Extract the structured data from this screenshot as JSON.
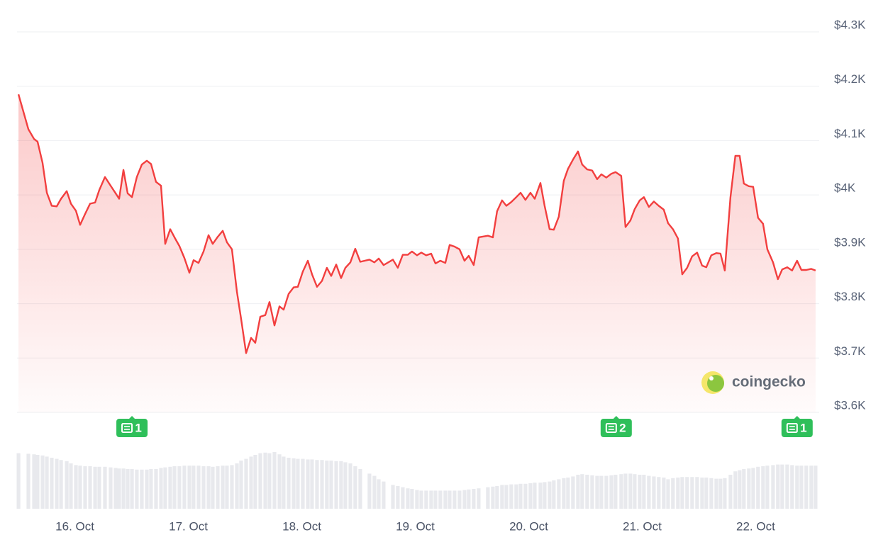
{
  "chart_data": {
    "type": "line",
    "x": [
      15.503,
      15.59,
      15.64,
      15.671,
      15.715,
      15.753,
      15.796,
      15.84,
      15.878,
      15.928,
      15.965,
      16.009,
      16.046,
      16.09,
      16.134,
      16.178,
      16.215,
      16.265,
      16.315,
      16.359,
      16.39,
      16.428,
      16.465,
      16.503,
      16.546,
      16.59,
      16.634,
      16.671,
      16.715,
      16.759,
      16.796,
      16.84,
      16.878,
      16.921,
      16.965,
      17.009,
      17.046,
      17.09,
      17.134,
      17.178,
      17.215,
      17.259,
      17.303,
      17.34,
      17.384,
      17.428,
      17.465,
      17.509,
      17.553,
      17.59,
      17.634,
      17.678,
      17.715,
      17.759,
      17.803,
      17.84,
      17.884,
      17.928,
      17.965,
      18.009,
      18.053,
      18.09,
      18.134,
      18.178,
      18.221,
      18.259,
      18.303,
      18.346,
      18.384,
      18.428,
      18.471,
      18.515,
      18.596,
      18.64,
      18.678,
      18.721,
      18.803,
      18.846,
      18.89,
      18.934,
      18.971,
      19.015,
      19.053,
      19.096,
      19.14,
      19.178,
      19.221,
      19.265,
      19.303,
      19.346,
      19.39,
      19.434,
      19.471,
      19.515,
      19.559,
      19.64,
      19.684,
      19.721,
      19.765,
      19.803,
      19.846,
      19.89,
      19.928,
      19.971,
      20.015,
      20.053,
      20.103,
      20.14,
      20.184,
      20.221,
      20.265,
      20.309,
      20.346,
      20.39,
      20.434,
      20.471,
      20.515,
      20.559,
      20.603,
      20.64,
      20.684,
      20.728,
      20.765,
      20.815,
      20.853,
      20.896,
      20.934,
      20.978,
      21.015,
      21.059,
      21.103,
      21.146,
      21.19,
      21.228,
      21.271,
      21.315,
      21.353,
      21.396,
      21.44,
      21.484,
      21.528,
      21.565,
      21.609,
      21.653,
      21.69,
      21.728,
      21.778,
      21.821,
      21.859,
      21.896,
      21.94,
      21.978,
      22.021,
      22.065,
      22.103,
      22.153,
      22.196,
      22.234,
      22.278,
      22.321,
      22.365,
      22.403,
      22.446,
      22.49,
      22.528
    ],
    "series": [
      {
        "color": "#f23f3f",
        "values": [
          4185,
          4121,
          4103,
          4098,
          4059,
          4004,
          3980,
          3979,
          3993,
          4007,
          3984,
          3971,
          3945,
          3965,
          3984,
          3986,
          4009,
          4033,
          4017,
          4003,
          3993,
          4046,
          4003,
          3996,
          4033,
          4056,
          4063,
          4057,
          4024,
          4017,
          3910,
          3937,
          3922,
          3906,
          3884,
          3857,
          3880,
          3875,
          3896,
          3926,
          3910,
          3923,
          3934,
          3913,
          3900,
          3822,
          3772,
          3709,
          3737,
          3728,
          3776,
          3779,
          3803,
          3760,
          3795,
          3789,
          3818,
          3830,
          3831,
          3859,
          3879,
          3854,
          3831,
          3842,
          3866,
          3851,
          3872,
          3847,
          3866,
          3876,
          3901,
          3877,
          3881,
          3876,
          3883,
          3871,
          3881,
          3866,
          3890,
          3890,
          3896,
          3889,
          3894,
          3889,
          3892,
          3874,
          3879,
          3875,
          3908,
          3905,
          3900,
          3879,
          3888,
          3871,
          3922,
          3925,
          3922,
          3970,
          3990,
          3980,
          3987,
          3996,
          4004,
          3991,
          4004,
          3993,
          4022,
          3980,
          3937,
          3936,
          3960,
          4026,
          4048,
          4065,
          4080,
          4056,
          4047,
          4045,
          4029,
          4038,
          4032,
          4039,
          4042,
          4035,
          3941,
          3953,
          3974,
          3990,
          3996,
          3978,
          3988,
          3980,
          3973,
          3948,
          3937,
          3920,
          3854,
          3866,
          3887,
          3894,
          3870,
          3867,
          3889,
          3893,
          3892,
          3861,
          3996,
          4072,
          4072,
          4021,
          4016,
          4015,
          3958,
          3947,
          3900,
          3876,
          3845,
          3863,
          3867,
          3861,
          3879,
          3862,
          3862,
          3864,
          3861
        ]
      }
    ],
    "volume": {
      "color": "#e8e9ed",
      "ylim": [
        0,
        100
      ],
      "values": [
        98,
        97,
        96,
        95,
        94,
        92,
        90,
        88,
        86,
        84,
        80,
        77,
        76,
        75,
        75,
        74,
        74,
        74,
        73,
        72,
        71,
        71,
        70,
        70,
        69,
        69,
        69,
        70,
        70,
        72,
        73,
        74,
        75,
        75,
        76,
        76,
        76,
        76,
        75,
        75,
        74,
        75,
        76,
        76,
        77,
        80,
        85,
        88,
        92,
        95,
        98,
        99,
        98,
        100,
        96,
        92,
        90,
        89,
        88,
        88,
        87,
        87,
        86,
        86,
        85,
        85,
        84,
        84,
        82,
        80,
        75,
        70,
        62,
        58,
        52,
        48,
        42,
        40,
        38,
        36,
        35,
        33,
        32,
        32,
        32,
        32,
        32,
        32,
        32,
        32,
        32,
        33,
        34,
        35,
        36,
        38,
        39,
        40,
        42,
        42,
        43,
        43,
        44,
        44,
        45,
        46,
        46,
        47,
        48,
        50,
        52,
        54,
        55,
        57,
        60,
        61,
        60,
        59,
        58,
        58,
        58,
        59,
        60,
        61,
        62,
        62,
        61,
        60,
        60,
        58,
        57,
        56,
        55,
        52,
        54,
        55,
        56,
        56,
        56,
        56,
        55,
        55,
        54,
        53,
        53,
        54,
        60,
        66,
        68,
        70,
        71,
        72,
        74,
        75,
        76,
        77,
        78,
        78,
        78,
        77,
        76,
        76,
        76,
        76,
        76
      ]
    },
    "xlim": [
      15.49,
      22.56
    ],
    "xticks": [
      {
        "value": 16,
        "label": "16. Oct"
      },
      {
        "value": 17,
        "label": "17. Oct"
      },
      {
        "value": 18,
        "label": "18. Oct"
      },
      {
        "value": 19,
        "label": "19. Oct"
      },
      {
        "value": 20,
        "label": "20. Oct"
      },
      {
        "value": 21,
        "label": "21. Oct"
      },
      {
        "value": 22,
        "label": "22. Oct"
      }
    ],
    "ylim": [
      3600,
      4300
    ],
    "yticks": [
      {
        "value": 3600,
        "label": "$3.6K"
      },
      {
        "value": 3700,
        "label": "$3.7K"
      },
      {
        "value": 3800,
        "label": "$3.8K"
      },
      {
        "value": 3900,
        "label": "$3.9K"
      },
      {
        "value": 4000,
        "label": "$4K"
      },
      {
        "value": 4100,
        "label": "$4.1K"
      },
      {
        "value": 4200,
        "label": "$4.2K"
      },
      {
        "value": 4300,
        "label": "$4.3K"
      }
    ],
    "grid": true,
    "annotations": [
      {
        "x": 16.503,
        "count": 1,
        "color": "#2fbf5a"
      },
      {
        "x": 20.771,
        "count": 2,
        "color": "#2fbf5a"
      },
      {
        "x": 22.365,
        "count": 1,
        "color": "#2fbf5a"
      }
    ],
    "watermark": "coingecko"
  }
}
